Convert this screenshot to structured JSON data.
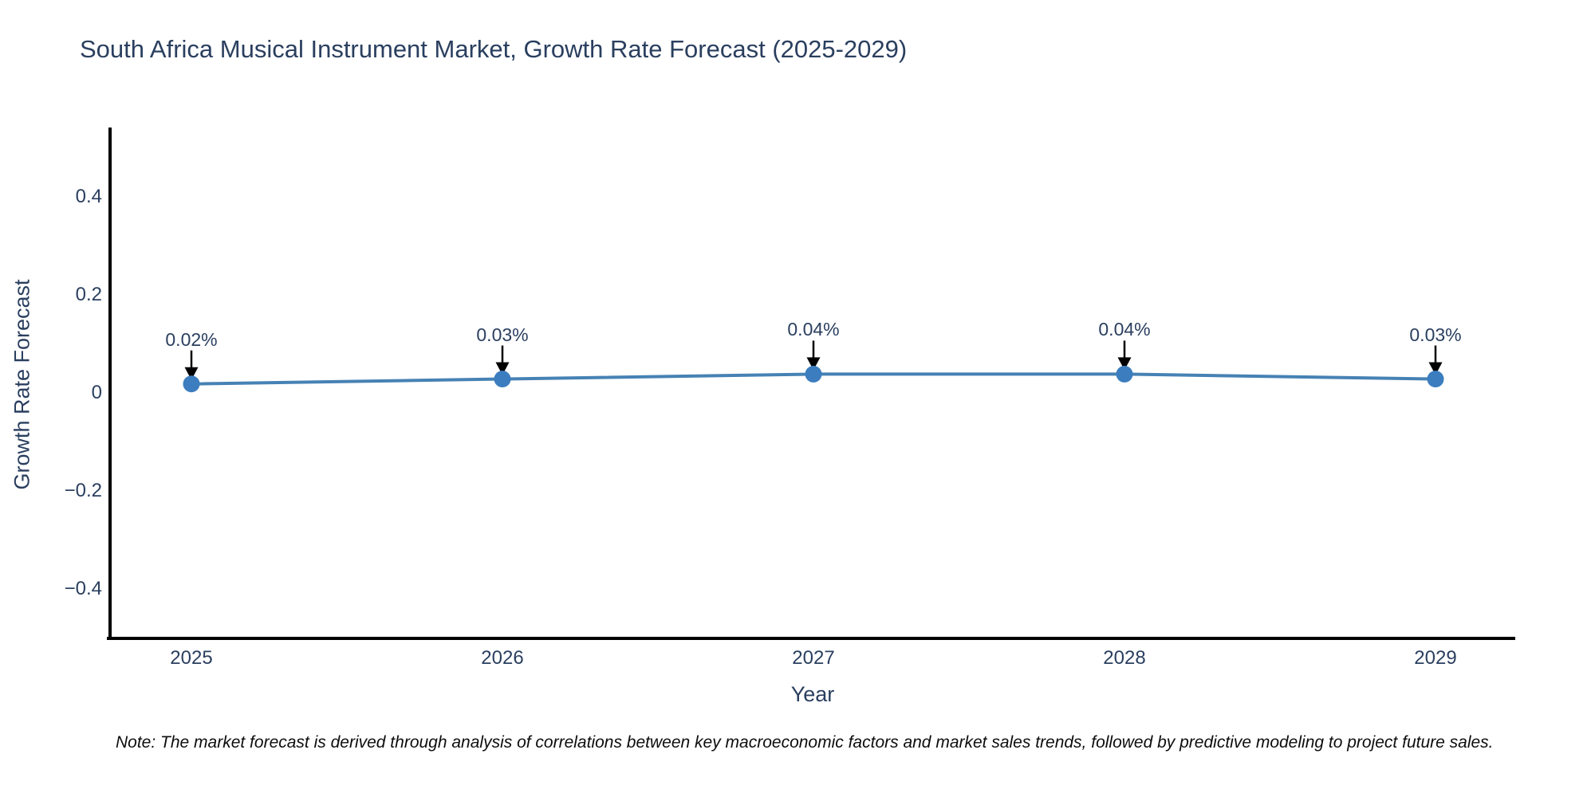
{
  "title": "South Africa Musical Instrument Market, Growth Rate Forecast (2025-2029)",
  "note": "Note: The market forecast is derived through analysis of correlations between key macroeconomic factors and market sales trends, followed by predictive modeling to project future sales.",
  "chart_data": {
    "type": "line",
    "title": "South Africa Musical Instrument Market, Growth Rate Forecast (2025-2029)",
    "xlabel": "Year",
    "ylabel": "Growth Rate Forecast",
    "x": [
      2025,
      2026,
      2027,
      2028,
      2029
    ],
    "y": [
      0.02,
      0.03,
      0.04,
      0.04,
      0.03
    ],
    "point_labels": [
      "0.02%",
      "0.03%",
      "0.04%",
      "0.04%",
      "0.03%"
    ],
    "yticks": [
      0.4,
      0.2,
      0,
      -0.2,
      -0.4
    ],
    "ylim": [
      -0.5,
      0.545
    ],
    "grid": false,
    "legend": false,
    "line_color": "#4682b4",
    "marker_color": "#3c7dbf",
    "axis_color": "#000000",
    "text_color": "#2a3f5f",
    "annotation_arrow_color": "#000000"
  }
}
